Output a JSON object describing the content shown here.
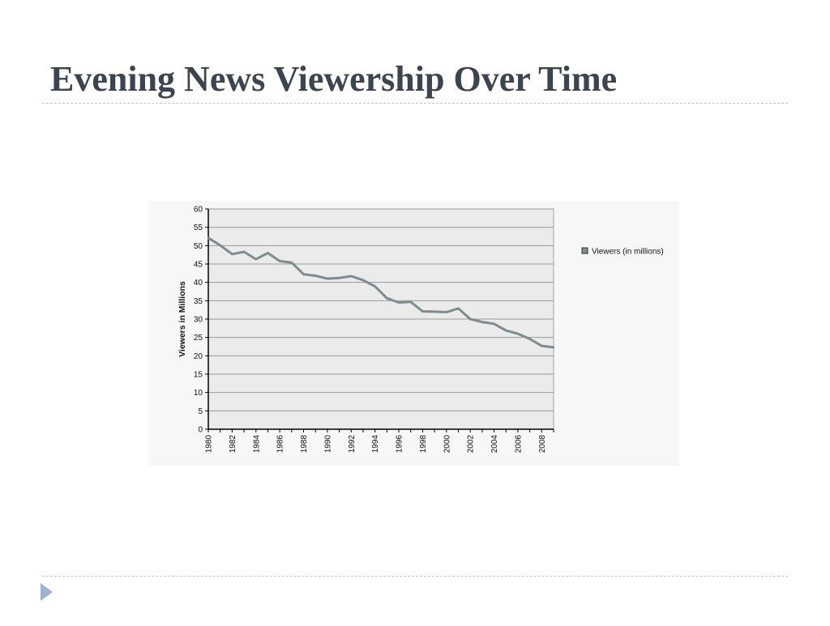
{
  "slide": {
    "title": "Evening News Viewership Over Time"
  },
  "colors": {
    "title": "#3c4450",
    "line": "#7f8c8d",
    "plot_bg": "#ebebeb",
    "grid": "#999999",
    "rule": "#b9c7d6",
    "nav_arrow": "#9fb3cc"
  },
  "nav": {
    "icon": "triangle-right-icon"
  },
  "chart_data": {
    "type": "line",
    "title": "",
    "xlabel": "",
    "ylabel": "Viewers in Millions",
    "ylim": [
      0,
      60
    ],
    "yticks": [
      0,
      5,
      10,
      15,
      20,
      25,
      30,
      35,
      40,
      45,
      50,
      55,
      60
    ],
    "xlim": [
      1980,
      2009
    ],
    "xticks": [
      1980,
      1982,
      1984,
      1986,
      1988,
      1990,
      1992,
      1994,
      1996,
      1998,
      2000,
      2002,
      2004,
      2006,
      2008
    ],
    "grid": true,
    "legend_position": "right",
    "x": [
      1980,
      1981,
      1982,
      1983,
      1984,
      1985,
      1986,
      1987,
      1988,
      1989,
      1990,
      1991,
      1992,
      1993,
      1994,
      1995,
      1996,
      1997,
      1998,
      1999,
      2000,
      2001,
      2002,
      2003,
      2004,
      2005,
      2006,
      2007,
      2008,
      2009
    ],
    "series": [
      {
        "name": "Viewers (in millions)",
        "values": [
          52.1,
          50.1,
          47.7,
          48.3,
          46.3,
          48.0,
          45.8,
          45.4,
          42.2,
          41.8,
          41.0,
          41.2,
          41.7,
          40.6,
          38.9,
          35.7,
          34.5,
          34.7,
          32.1,
          32.0,
          31.9,
          32.9,
          30.0,
          29.2,
          28.7,
          26.9,
          26.0,
          24.6,
          22.7,
          22.3
        ]
      }
    ]
  }
}
